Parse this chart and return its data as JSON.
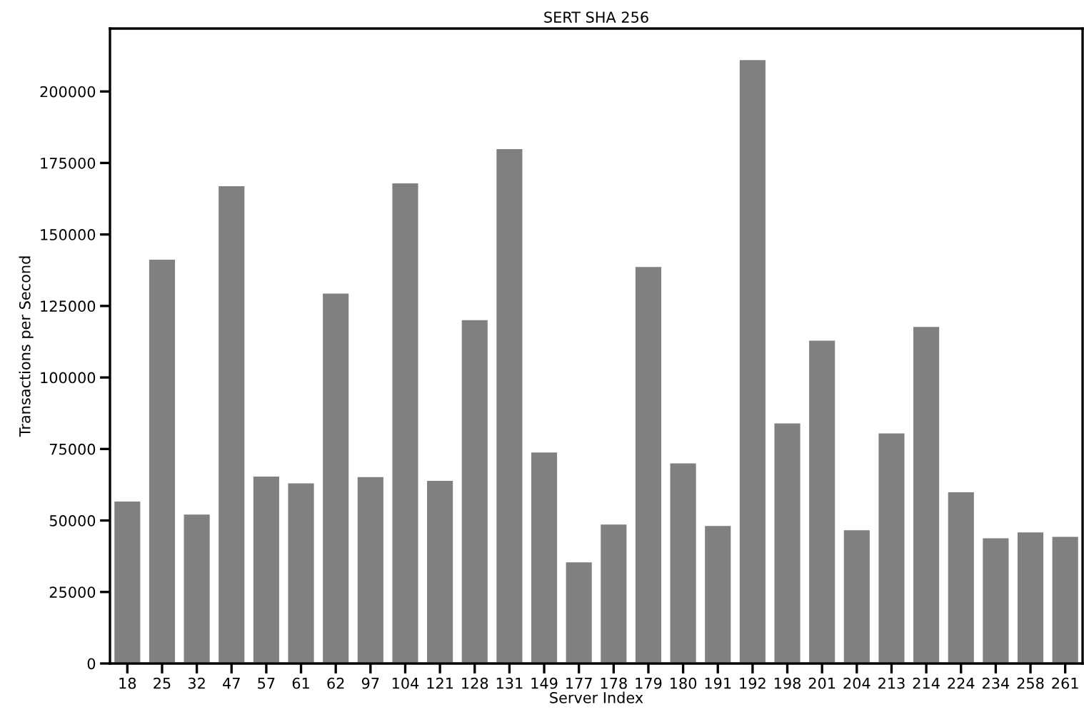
{
  "chart_data": {
    "type": "bar",
    "title": "SERT SHA 256",
    "xlabel": "Server Index",
    "ylabel": "Transactions per Second",
    "categories": [
      "18",
      "25",
      "32",
      "47",
      "57",
      "61",
      "62",
      "97",
      "104",
      "121",
      "128",
      "131",
      "149",
      "177",
      "178",
      "179",
      "180",
      "191",
      "192",
      "198",
      "201",
      "204",
      "213",
      "214",
      "224",
      "234",
      "258",
      "261"
    ],
    "values": [
      57000,
      141500,
      52400,
      167200,
      65700,
      63300,
      129700,
      65500,
      168200,
      64200,
      120400,
      180200,
      74100,
      35700,
      48900,
      139000,
      70300,
      48400,
      211300,
      84300,
      113200,
      46900,
      80800,
      118000,
      60200,
      44100,
      46200,
      44600
    ],
    "color": "#808080",
    "ylim": [
      0,
      222000
    ],
    "yticks": [
      0,
      25000,
      50000,
      75000,
      100000,
      125000,
      150000,
      175000,
      200000
    ],
    "grid": false,
    "legend": false
  }
}
